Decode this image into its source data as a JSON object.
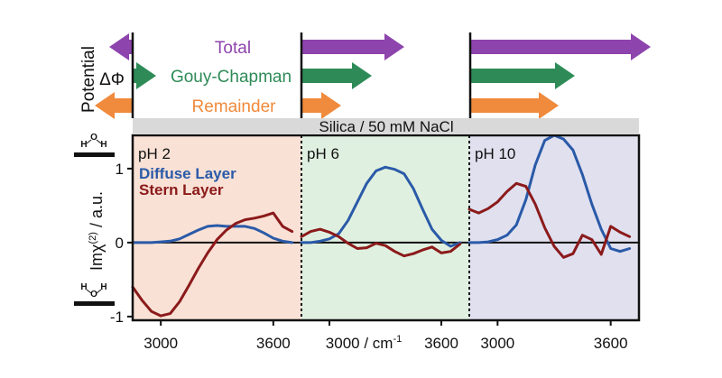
{
  "panel_header": "Silica / 50 mM NaCl",
  "potential_axis": {
    "label": "Potential",
    "symbol": "ΔΦ"
  },
  "arrow_rows": [
    {
      "name": "Total",
      "color": "#8e44ad"
    },
    {
      "name": "Gouy-Chapman",
      "color": "#2e8b57"
    },
    {
      "name": "Remainder",
      "color": "#f08a3c"
    }
  ],
  "arrows": [
    {
      "panel": "pH 2",
      "row": "Total",
      "direction": "left",
      "magnitude": 0.13
    },
    {
      "panel": "pH 2",
      "row": "Gouy-Chapman",
      "direction": "right",
      "magnitude": 0.08
    },
    {
      "panel": "pH 2",
      "row": "Remainder",
      "direction": "left",
      "magnitude": 0.21
    },
    {
      "panel": "pH 6",
      "row": "Total",
      "direction": "right",
      "magnitude": 0.57
    },
    {
      "panel": "pH 6",
      "row": "Gouy-Chapman",
      "direction": "right",
      "magnitude": 0.39
    },
    {
      "panel": "pH 6",
      "row": "Remainder",
      "direction": "right",
      "magnitude": 0.22
    },
    {
      "panel": "pH 10",
      "row": "Total",
      "direction": "right",
      "magnitude": 1.0
    },
    {
      "panel": "pH 10",
      "row": "Gouy-Chapman",
      "direction": "right",
      "magnitude": 0.58
    },
    {
      "panel": "pH 10",
      "row": "Remainder",
      "direction": "right",
      "magnitude": 0.49
    }
  ],
  "molecule_labels": {
    "h": "H",
    "o": "O"
  },
  "chart_data": {
    "type": "line",
    "title": "",
    "xlabel": "3000 / cm-1",
    "ylabel": "Imχ(2) / a.u.",
    "ylim": [
      -1.05,
      1.45
    ],
    "yticks": [
      -1,
      0,
      1
    ],
    "legend": [
      "Diffuse Layer",
      "Stern Layer"
    ],
    "series_colors": {
      "Diffuse Layer": "#2a5aa8",
      "Stern Layer": "#8b1a1a"
    },
    "panels": [
      {
        "label": "pH 2",
        "bg": "#f9e1d6",
        "xlim": [
          2850,
          3750
        ],
        "xticks": [
          3000,
          3600
        ],
        "series": [
          {
            "name": "Diffuse Layer",
            "x": [
              2850,
              2900,
              2950,
              3000,
              3050,
              3100,
              3150,
              3200,
              3250,
              3300,
              3350,
              3400,
              3450,
              3500,
              3550,
              3600,
              3650,
              3700
            ],
            "y": [
              0.0,
              0.0,
              0.0,
              0.01,
              0.02,
              0.05,
              0.11,
              0.17,
              0.22,
              0.23,
              0.22,
              0.22,
              0.22,
              0.19,
              0.13,
              0.06,
              0.02,
              0.0
            ]
          },
          {
            "name": "Stern Layer",
            "x": [
              2850,
              2900,
              2950,
              3000,
              3050,
              3100,
              3150,
              3200,
              3250,
              3300,
              3350,
              3400,
              3450,
              3500,
              3550,
              3600,
              3650,
              3700
            ],
            "y": [
              -0.6,
              -0.78,
              -0.93,
              -0.99,
              -0.96,
              -0.8,
              -0.58,
              -0.35,
              -0.14,
              0.04,
              0.17,
              0.26,
              0.31,
              0.33,
              0.36,
              0.4,
              0.22,
              0.15
            ]
          }
        ]
      },
      {
        "label": "pH 6",
        "bg": "#e0f0e0",
        "xlim": [
          2850,
          3750
        ],
        "xticks": [
          3000,
          3600
        ],
        "series": [
          {
            "name": "Diffuse Layer",
            "x": [
              2850,
              2900,
              2950,
              3000,
              3050,
              3100,
              3150,
              3200,
              3250,
              3300,
              3350,
              3400,
              3450,
              3500,
              3550,
              3600,
              3650,
              3700
            ],
            "y": [
              0.0,
              0.0,
              0.02,
              0.05,
              0.12,
              0.3,
              0.55,
              0.8,
              0.97,
              1.02,
              0.99,
              0.93,
              0.73,
              0.45,
              0.18,
              0.03,
              -0.05,
              0.0
            ]
          },
          {
            "name": "Stern Layer",
            "x": [
              2850,
              2900,
              2950,
              3000,
              3050,
              3100,
              3150,
              3200,
              3250,
              3300,
              3350,
              3400,
              3450,
              3500,
              3550,
              3600,
              3650,
              3700
            ],
            "y": [
              0.08,
              0.15,
              0.18,
              0.14,
              0.08,
              -0.01,
              -0.08,
              -0.07,
              -0.01,
              -0.04,
              -0.12,
              -0.18,
              -0.15,
              -0.1,
              -0.06,
              -0.14,
              -0.12,
              -0.02
            ]
          }
        ]
      },
      {
        "label": "pH 10",
        "bg": "#e0e0ef",
        "xlim": [
          2850,
          3750
        ],
        "xticks": [
          3000,
          3600
        ],
        "series": [
          {
            "name": "Diffuse Layer",
            "x": [
              2850,
              2900,
              2950,
              3000,
              3050,
              3100,
              3150,
              3200,
              3250,
              3300,
              3350,
              3400,
              3450,
              3500,
              3550,
              3600,
              3650,
              3700
            ],
            "y": [
              0.0,
              0.0,
              0.01,
              0.04,
              0.1,
              0.24,
              0.58,
              1.05,
              1.38,
              1.45,
              1.4,
              1.25,
              0.92,
              0.52,
              0.18,
              -0.08,
              -0.12,
              -0.08
            ]
          },
          {
            "name": "Stern Layer",
            "x": [
              2850,
              2900,
              2950,
              3000,
              3050,
              3100,
              3150,
              3200,
              3250,
              3300,
              3350,
              3400,
              3450,
              3500,
              3550,
              3600,
              3650,
              3700
            ],
            "y": [
              0.45,
              0.4,
              0.46,
              0.55,
              0.69,
              0.8,
              0.76,
              0.52,
              0.2,
              -0.05,
              -0.2,
              -0.15,
              0.1,
              0.04,
              -0.16,
              0.22,
              0.14,
              0.08
            ]
          }
        ]
      }
    ]
  }
}
